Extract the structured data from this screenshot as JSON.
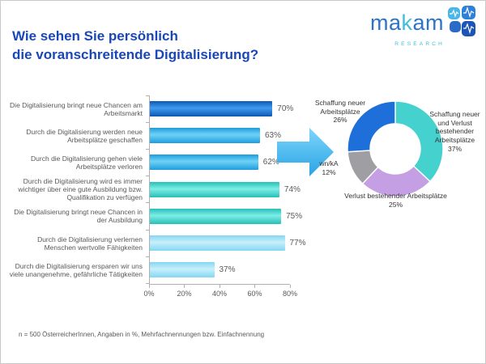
{
  "header": {
    "title_line1": "Wie sehen Sie persönlich",
    "title_line2": "die voranschreitende Digitalisierung?",
    "logo": {
      "brand_pre": "ma",
      "brand_accent": "k",
      "brand_post": "am",
      "subtitle": "RESEARCH",
      "brand_color": "#2d74c9",
      "accent_color": "#3cc0d8"
    }
  },
  "footer": {
    "note": "n = 500 ÖsterreicherInnen, Angaben in %, Mehrfachnennungen bzw. Einfachnennung"
  },
  "colors": {
    "title_blue": "#1a47b8",
    "axis_gray": "#b0b0b0",
    "text_gray": "#595959",
    "arrow_blue": "#4fc0f2"
  },
  "chart_data": [
    {
      "type": "bar",
      "orientation": "horizontal",
      "title": "Wie sehen Sie persönlich die voranschreitende Digitalisierung?",
      "categories": [
        "Die Digitalisierung bringt neue Chancen am Arbeitsmarkt",
        "Durch die Digitalisierung werden neue Arbeitsplätze geschaffen",
        "Durch die Digitalisierung gehen viele Arbeitsplätze verloren",
        "Durch die Digitalisierung wird es immer wichtiger über eine gute Ausbildung bzw. Qualifikation zu verfügen",
        "Die Digitalisierung bringt neue Chancen in der Ausbildung",
        "Durch die Digitalisierung verlernen Menschen wertvolle Fähigkeiten",
        "Durch die Digitalisierung ersparen wir uns viele unangenehme, gefährliche Tätigkeiten"
      ],
      "values": [
        70,
        63,
        62,
        74,
        75,
        77,
        37
      ],
      "value_suffix": "%",
      "bar_colors": [
        {
          "dark": "#0d57b5",
          "light": "#3f9bee"
        },
        {
          "dark": "#1d9ddd",
          "light": "#6fd2f7"
        },
        {
          "dark": "#1d9ddd",
          "light": "#6fd2f7"
        },
        {
          "dark": "#27bfb7",
          "light": "#7deee6"
        },
        {
          "dark": "#27bfb7",
          "light": "#7deee6"
        },
        {
          "dark": "#84d7f2",
          "light": "#c8effb"
        },
        {
          "dark": "#84d7f2",
          "light": "#c8effb"
        }
      ],
      "x_ticks": [
        "0%",
        "20%",
        "40%",
        "60%",
        "80%"
      ],
      "xlim": [
        0,
        80
      ],
      "grid": false,
      "legend": false
    },
    {
      "type": "pie",
      "subtype": "donut",
      "start_angle_deg": 0,
      "direction": "clockwise",
      "slices": [
        {
          "label": "Schaffung neuer und Verlust bestehender Arbeitsplätze",
          "value": 37,
          "pct": "37%",
          "color": "#45d1ce"
        },
        {
          "label": "Verlust bestehender Arbeitsplätze",
          "value": 25,
          "pct": "25%",
          "color": "#c49fe3"
        },
        {
          "label": "wn/kA",
          "value": 12,
          "pct": "12%",
          "color": "#9e9ea3"
        },
        {
          "label": "Schaffung neuer Arbeitsplätze",
          "value": 26,
          "pct": "26%",
          "color": "#1e6fd9"
        }
      ]
    }
  ]
}
